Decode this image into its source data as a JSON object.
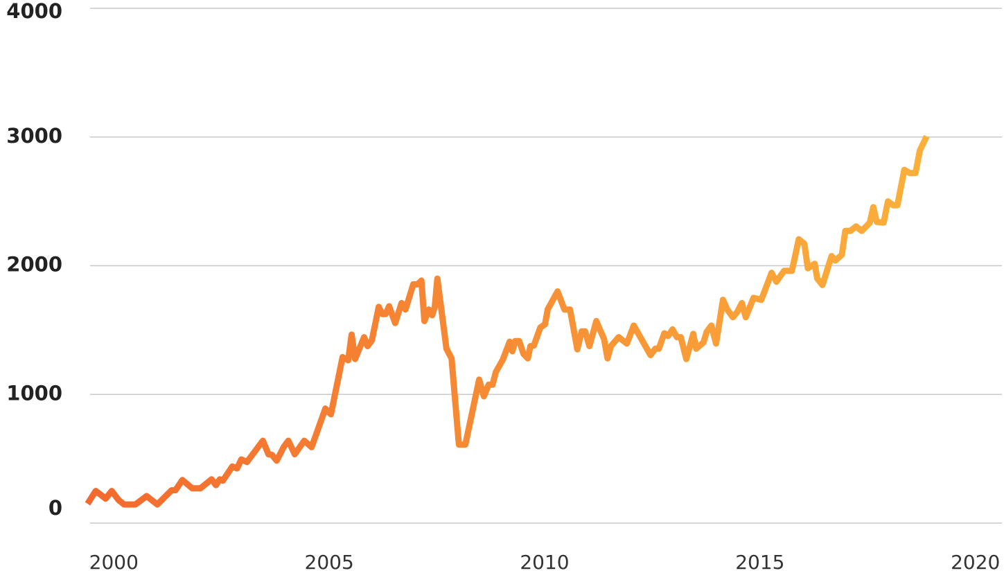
{
  "chart_data": {
    "type": "line",
    "xlim": [
      1999.4,
      2020.6
    ],
    "xticks": [
      2000,
      2005,
      2010,
      2015,
      2020
    ],
    "ylim": [
      0,
      4000
    ],
    "yticks": [
      0,
      1000,
      2000,
      3000,
      4000
    ],
    "grid": true,
    "series": [
      {
        "color": "#f26a2e",
        "color_end": "#fbb03b",
        "x": [
          1999.39,
          1999.58,
          1999.81,
          1999.95,
          2000.11,
          2000.24,
          2000.5,
          2000.76,
          2001.01,
          2001.34,
          2001.43,
          2001.59,
          2001.82,
          2002.01,
          2002.27,
          2002.37,
          2002.46,
          2002.53,
          2002.75,
          2002.86,
          2002.96,
          2003.09,
          2003.46,
          2003.59,
          2003.67,
          2003.78,
          2003.94,
          2004.05,
          2004.2,
          2004.42,
          2004.59,
          2004.91,
          2005.04,
          2005.31,
          2005.44,
          2005.52,
          2005.6,
          2005.81,
          2005.89,
          2005.99,
          2006.15,
          2006.23,
          2006.31,
          2006.39,
          2006.53,
          2006.68,
          2006.77,
          2006.95,
          2007.05,
          2007.14,
          2007.21,
          2007.31,
          2007.39,
          2007.45,
          2007.51,
          2007.72,
          2007.84,
          2008.01,
          2008.16,
          2008.48,
          2008.59,
          2008.7,
          2008.79,
          2008.87,
          2009.03,
          2009.19,
          2009.25,
          2009.32,
          2009.41,
          2009.51,
          2009.61,
          2009.67,
          2009.75,
          2009.9,
          2010.01,
          2010.07,
          2010.3,
          2010.46,
          2010.59,
          2010.76,
          2010.86,
          2010.94,
          2011.04,
          2011.2,
          2011.38,
          2011.46,
          2011.54,
          2011.72,
          2011.91,
          2012.07,
          2012.46,
          2012.57,
          2012.65,
          2012.78,
          2012.87,
          2012.97,
          2013.07,
          2013.16,
          2013.29,
          2013.45,
          2013.52,
          2013.69,
          2013.76,
          2013.87,
          2013.98,
          2014.14,
          2014.24,
          2014.37,
          2014.47,
          2014.58,
          2014.67,
          2014.85,
          2015.03,
          2015.27,
          2015.38,
          2015.56,
          2015.74,
          2015.9,
          2016.03,
          2016.11,
          2016.27,
          2016.33,
          2016.45,
          2016.66,
          2016.75,
          2016.9,
          2016.98,
          2017.1,
          2017.23,
          2017.36,
          2017.55,
          2017.63,
          2017.71,
          2017.87,
          2017.97,
          2018.09,
          2018.19,
          2018.35,
          2018.48,
          2018.61,
          2018.71,
          2018.87
        ],
        "values": [
          150,
          250,
          190,
          250,
          180,
          145,
          145,
          210,
          145,
          255,
          255,
          335,
          270,
          270,
          340,
          295,
          340,
          330,
          440,
          425,
          495,
          475,
          640,
          535,
          530,
          485,
          590,
          640,
          535,
          640,
          590,
          890,
          845,
          1290,
          1265,
          1465,
          1275,
          1445,
          1375,
          1420,
          1680,
          1625,
          1625,
          1685,
          1555,
          1710,
          1660,
          1855,
          1855,
          1885,
          1570,
          1660,
          1615,
          1680,
          1900,
          1355,
          1280,
          610,
          610,
          1115,
          985,
          1075,
          1075,
          1175,
          1270,
          1410,
          1335,
          1415,
          1415,
          1315,
          1280,
          1375,
          1380,
          1520,
          1545,
          1660,
          1800,
          1660,
          1660,
          1350,
          1490,
          1490,
          1375,
          1570,
          1430,
          1280,
          1375,
          1445,
          1395,
          1535,
          1305,
          1355,
          1355,
          1475,
          1455,
          1505,
          1445,
          1445,
          1275,
          1470,
          1355,
          1405,
          1485,
          1535,
          1395,
          1735,
          1660,
          1600,
          1640,
          1710,
          1600,
          1750,
          1735,
          1945,
          1875,
          1960,
          1960,
          2205,
          2170,
          1980,
          2015,
          1900,
          1850,
          2075,
          2040,
          2085,
          2270,
          2270,
          2305,
          2270,
          2335,
          2455,
          2340,
          2335,
          2500,
          2470,
          2470,
          2745,
          2720,
          2720,
          2895,
          3005
        ]
      }
    ]
  }
}
